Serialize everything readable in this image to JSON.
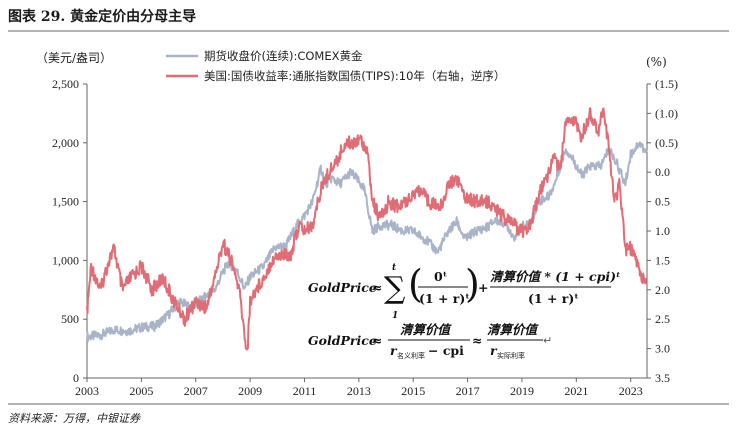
{
  "figure": {
    "title": "图表 29. 黄金定价由分母主导",
    "source": "资料来源：万得，中银证券"
  },
  "chart_data": {
    "type": "line",
    "title": "图表 29. 黄金定价由分母主导",
    "left_axis": {
      "unit_label": "（美元/盎司）",
      "ylim": [
        0,
        2500
      ],
      "ticks": [
        0,
        500,
        1000,
        1500,
        2000,
        2500
      ],
      "tick_labels": [
        "0",
        "500",
        "1,000",
        "1,500",
        "2,000",
        "2,500"
      ]
    },
    "right_axis": {
      "unit_label": "(%)",
      "ylim": [
        3.5,
        -1.5
      ],
      "inverted": true,
      "ticks": [
        -1.5,
        -1.0,
        -0.5,
        0.0,
        0.5,
        1.0,
        1.5,
        2.0,
        2.5,
        3.0,
        3.5
      ],
      "tick_labels": [
        "(1.5)",
        "(1.0)",
        "(0.5)",
        "0.0",
        "0.5",
        "1.0",
        "1.5",
        "2.0",
        "2.5",
        "3.0",
        "3.5"
      ]
    },
    "x_axis": {
      "xlim": [
        2003.0,
        2023.6
      ],
      "ticks": [
        2003,
        2005,
        2007,
        2009,
        2011,
        2013,
        2015,
        2017,
        2019,
        2021,
        2023
      ],
      "tick_labels": [
        "2003",
        "2005",
        "2007",
        "2009",
        "2011",
        "2013",
        "2015",
        "2017",
        "2019",
        "2021",
        "2023"
      ]
    },
    "series": [
      {
        "name": "期货收盘价(连续):COMEX黄金",
        "axis": "left",
        "color": "#a9b4c9",
        "x": [
          2003.0,
          2003.5,
          2004.0,
          2004.5,
          2005.0,
          2005.5,
          2006.0,
          2006.4,
          2006.8,
          2007.3,
          2007.7,
          2008.0,
          2008.2,
          2008.5,
          2008.8,
          2009.0,
          2009.5,
          2009.9,
          2010.3,
          2010.8,
          2011.0,
          2011.3,
          2011.6,
          2011.8,
          2012.0,
          2012.3,
          2012.7,
          2012.9,
          2013.2,
          2013.5,
          2013.8,
          2014.2,
          2014.6,
          2015.0,
          2015.5,
          2015.9,
          2016.3,
          2016.6,
          2016.9,
          2017.3,
          2017.7,
          2018.0,
          2018.4,
          2018.7,
          2019.0,
          2019.3,
          2019.6,
          2020.0,
          2020.2,
          2020.6,
          2020.9,
          2021.2,
          2021.5,
          2021.9,
          2022.2,
          2022.5,
          2022.8,
          2023.0,
          2023.3,
          2023.6
        ],
        "values": [
          350,
          365,
          410,
          400,
          430,
          440,
          540,
          650,
          600,
          680,
          750,
          900,
          980,
          920,
          760,
          860,
          950,
          1110,
          1120,
          1330,
          1380,
          1500,
          1780,
          1650,
          1700,
          1650,
          1750,
          1700,
          1600,
          1250,
          1300,
          1300,
          1250,
          1250,
          1170,
          1070,
          1250,
          1330,
          1180,
          1250,
          1280,
          1340,
          1320,
          1200,
          1290,
          1300,
          1500,
          1550,
          1650,
          1950,
          1850,
          1720,
          1800,
          1800,
          1950,
          1820,
          1650,
          1900,
          2000,
          1920
        ]
      },
      {
        "name": "美国:国债收益率:通胀指数国债(TIPS):10年（右轴，逆序）",
        "axis": "right",
        "color": "#e06c75",
        "x": [
          2003.0,
          2003.15,
          2003.5,
          2003.8,
          2004.0,
          2004.3,
          2004.6,
          2005.0,
          2005.4,
          2005.8,
          2006.2,
          2006.6,
          2007.0,
          2007.4,
          2007.8,
          2008.0,
          2008.3,
          2008.6,
          2008.8,
          2008.9,
          2009.0,
          2009.2,
          2009.5,
          2009.8,
          2010.1,
          2010.5,
          2010.8,
          2011.0,
          2011.3,
          2011.6,
          2011.9,
          2012.2,
          2012.5,
          2012.8,
          2013.0,
          2013.3,
          2013.5,
          2013.8,
          2014.1,
          2014.5,
          2014.9,
          2015.2,
          2015.6,
          2016.0,
          2016.3,
          2016.6,
          2016.9,
          2017.3,
          2017.7,
          2018.0,
          2018.4,
          2018.7,
          2019.0,
          2019.3,
          2019.7,
          2020.0,
          2020.2,
          2020.4,
          2020.6,
          2020.9,
          2021.2,
          2021.5,
          2021.8,
          2022.0,
          2022.2,
          2022.4,
          2022.6,
          2022.8,
          2023.0,
          2023.2,
          2023.4,
          2023.6
        ],
        "values": [
          2.4,
          1.6,
          2.0,
          1.5,
          1.3,
          2.0,
          1.8,
          1.6,
          2.0,
          1.8,
          2.2,
          2.5,
          2.2,
          2.3,
          1.6,
          1.2,
          1.5,
          2.0,
          2.8,
          3.05,
          2.2,
          2.0,
          1.8,
          1.5,
          1.4,
          1.4,
          0.9,
          1.0,
          0.9,
          0.3,
          0.0,
          -0.2,
          -0.5,
          -0.5,
          -0.6,
          -0.4,
          0.5,
          0.8,
          0.5,
          0.6,
          0.4,
          0.3,
          0.5,
          0.6,
          0.2,
          0.1,
          0.4,
          0.5,
          0.5,
          0.6,
          0.8,
          0.9,
          1.0,
          0.9,
          0.3,
          0.0,
          -0.3,
          0.0,
          -0.8,
          -0.9,
          -0.6,
          -1.0,
          -0.7,
          -1.1,
          -0.4,
          0.5,
          0.2,
          1.3,
          1.3,
          1.5,
          1.8,
          1.9
        ]
      }
    ],
    "annotations": [
      "GoldPrice ≈ Σ 0ᵗ/(1+r)ᵗ + 清算价值*(1+cpi)ᵗ/(1+r)ᵗ",
      "GoldPrice ≈ 清算价值/(r名义利率 − cpi) ≈ 清算价值/r实际利率"
    ]
  },
  "formula": {
    "lhs": "GoldPrice",
    "approx": "≈",
    "sum_top": "t",
    "sum_bottom": "1",
    "sigma": "∑",
    "frac1_num": "0ᵗ",
    "frac1_den": "(1 + r)ᵗ",
    "plus": "+",
    "frac2_num": "清算价值 * (1 + cpi)ᵗ",
    "frac2_den": "(1 + r)ᵗ",
    "line2_lhs": "GoldPrice",
    "line2_num": "清算价值",
    "line2_den_r": "r",
    "line2_den_sub": "名义利率",
    "line2_den_rest": " − cpi",
    "line2_num2": "清算价值",
    "line2_den2_r": "r",
    "line2_den2_sub": "实际利率",
    "enter_mark": "↵"
  }
}
